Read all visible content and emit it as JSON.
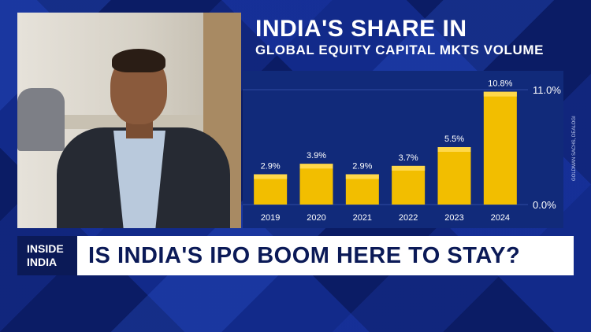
{
  "chart_data": {
    "type": "bar",
    "title": "INDIA'S SHARE IN",
    "subtitle": "GLOBAL EQUITY CAPITAL MKTS VOLUME",
    "categories": [
      "2019",
      "2020",
      "2021",
      "2022",
      "2023",
      "2024"
    ],
    "values": [
      2.9,
      3.9,
      2.9,
      3.7,
      5.5,
      10.8
    ],
    "value_labels": [
      "2.9%",
      "3.9%",
      "2.9%",
      "3.7%",
      "5.5%",
      "10.8%"
    ],
    "y_ticks": [
      "0.0%",
      "11.0%"
    ],
    "ylim": [
      0,
      11.0
    ],
    "grid": true,
    "colors": {
      "bar": "#f2be00",
      "bar_cap": "#ffd84a",
      "panel": "#112a7a",
      "grid": "#2f4aa3"
    }
  },
  "source": "GOLDMAN SACHS, DEALOGI",
  "badge": {
    "line1": "INSIDE",
    "line2": "INDIA"
  },
  "headline": "IS INDIA'S IPO BOOM HERE TO STAY?"
}
